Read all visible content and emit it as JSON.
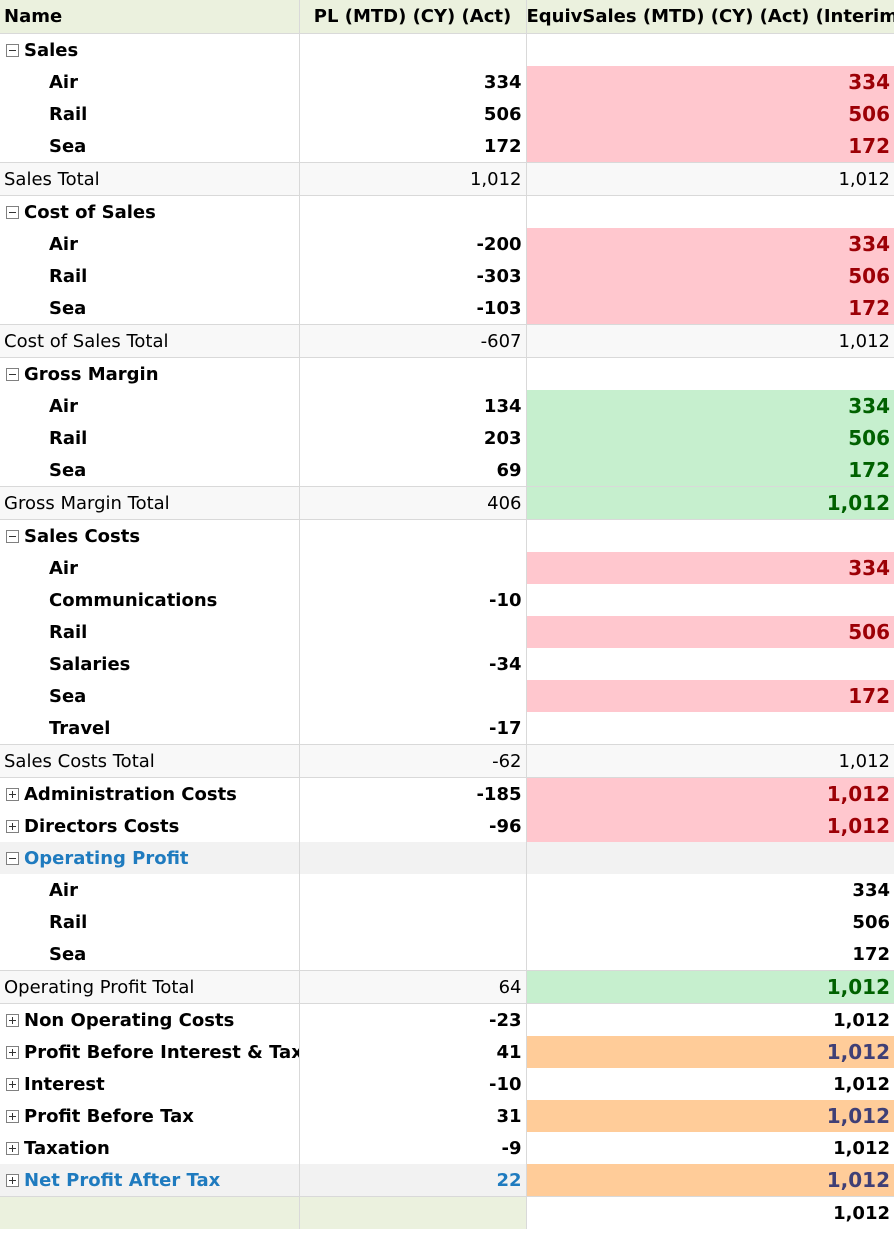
{
  "headers": {
    "name": "Name",
    "pl": "PL (MTD) (CY) (Act)",
    "equiv": "EquivSales (MTD) (CY) (Act) (Interim)"
  },
  "rows": [
    {
      "kind": "group",
      "toggle": "minus",
      "name": "Sales",
      "pl": "",
      "equiv": "",
      "fmt": ""
    },
    {
      "kind": "leaf",
      "name": "Air",
      "pl": "334",
      "equiv": "334",
      "fmt": "bad"
    },
    {
      "kind": "leaf",
      "name": "Rail",
      "pl": "506",
      "equiv": "506",
      "fmt": "bad"
    },
    {
      "kind": "leaf",
      "name": "Sea",
      "pl": "172",
      "equiv": "172",
      "fmt": "bad"
    },
    {
      "kind": "total",
      "name": "Sales Total",
      "pl": "1,012",
      "equiv": "1,012",
      "fmt": ""
    },
    {
      "kind": "group",
      "toggle": "minus",
      "name": "Cost of Sales",
      "pl": "",
      "equiv": "",
      "fmt": ""
    },
    {
      "kind": "leaf",
      "name": "Air",
      "pl": "-200",
      "equiv": "334",
      "fmt": "bad"
    },
    {
      "kind": "leaf",
      "name": "Rail",
      "pl": "-303",
      "equiv": "506",
      "fmt": "bad"
    },
    {
      "kind": "leaf",
      "name": "Sea",
      "pl": "-103",
      "equiv": "172",
      "fmt": "bad"
    },
    {
      "kind": "total",
      "name": "Cost of Sales Total",
      "pl": "-607",
      "equiv": "1,012",
      "fmt": ""
    },
    {
      "kind": "group",
      "toggle": "minus",
      "name": "Gross Margin",
      "pl": "",
      "equiv": "",
      "fmt": ""
    },
    {
      "kind": "leaf",
      "name": "Air",
      "pl": "134",
      "equiv": "334",
      "fmt": "good"
    },
    {
      "kind": "leaf",
      "name": "Rail",
      "pl": "203",
      "equiv": "506",
      "fmt": "good"
    },
    {
      "kind": "leaf",
      "name": "Sea",
      "pl": "69",
      "equiv": "172",
      "fmt": "good"
    },
    {
      "kind": "total",
      "name": "Gross Margin Total",
      "pl": "406",
      "equiv": "1,012",
      "fmt": "good"
    },
    {
      "kind": "group",
      "toggle": "minus",
      "name": "Sales Costs",
      "pl": "",
      "equiv": "",
      "fmt": ""
    },
    {
      "kind": "leaf",
      "name": "Air",
      "pl": "",
      "equiv": "334",
      "fmt": "bad"
    },
    {
      "kind": "leaf",
      "name": "Communications",
      "pl": "-10",
      "equiv": "",
      "fmt": ""
    },
    {
      "kind": "leaf",
      "name": "Rail",
      "pl": "",
      "equiv": "506",
      "fmt": "bad"
    },
    {
      "kind": "leaf",
      "name": "Salaries",
      "pl": "-34",
      "equiv": "",
      "fmt": ""
    },
    {
      "kind": "leaf",
      "name": "Sea",
      "pl": "",
      "equiv": "172",
      "fmt": "bad"
    },
    {
      "kind": "leaf",
      "name": "Travel",
      "pl": "-17",
      "equiv": "",
      "fmt": ""
    },
    {
      "kind": "total",
      "name": "Sales Costs Total",
      "pl": "-62",
      "equiv": "1,012",
      "fmt": ""
    },
    {
      "kind": "collapsed",
      "toggle": "plus",
      "name": "Administration Costs",
      "pl": "-185",
      "equiv": "1,012",
      "fmt": "bad"
    },
    {
      "kind": "collapsed",
      "toggle": "plus",
      "name": "Directors Costs",
      "pl": "-96",
      "equiv": "1,012",
      "fmt": "bad"
    },
    {
      "kind": "group",
      "toggle": "minus",
      "name": "Operating Profit",
      "pl": "",
      "equiv": "",
      "fmt": "",
      "highlight": true
    },
    {
      "kind": "leaf",
      "name": "Air",
      "pl": "",
      "equiv": "334",
      "fmt": ""
    },
    {
      "kind": "leaf",
      "name": "Rail",
      "pl": "",
      "equiv": "506",
      "fmt": ""
    },
    {
      "kind": "leaf",
      "name": "Sea",
      "pl": "",
      "equiv": "172",
      "fmt": ""
    },
    {
      "kind": "total",
      "name": "Operating Profit Total",
      "pl": "64",
      "equiv": "1,012",
      "fmt": "good"
    },
    {
      "kind": "collapsed",
      "toggle": "plus",
      "name": "Non Operating Costs",
      "pl": "-23",
      "equiv": "1,012",
      "fmt": ""
    },
    {
      "kind": "collapsed",
      "toggle": "plus",
      "name": "Profit Before Interest & Tax",
      "pl": "41",
      "equiv": "1,012",
      "fmt": "warn"
    },
    {
      "kind": "collapsed",
      "toggle": "plus",
      "name": "Interest",
      "pl": "-10",
      "equiv": "1,012",
      "fmt": ""
    },
    {
      "kind": "collapsed",
      "toggle": "plus",
      "name": "Profit Before Tax",
      "pl": "31",
      "equiv": "1,012",
      "fmt": "warn"
    },
    {
      "kind": "collapsed",
      "toggle": "plus",
      "name": "Taxation",
      "pl": "-9",
      "equiv": "1,012",
      "fmt": ""
    },
    {
      "kind": "collapsed",
      "toggle": "plus",
      "name": "Net Profit After Tax",
      "pl": "22",
      "equiv": "1,012",
      "fmt": "warn",
      "highlight": true
    },
    {
      "kind": "grandtotal",
      "name": "",
      "pl": "",
      "equiv": "1,012",
      "fmt": ""
    }
  ],
  "colors": {
    "header_bg": "#ebf1de",
    "bad_bg": "#ffc7ce",
    "bad_fg": "#9c0006",
    "good_bg": "#c6efce",
    "good_fg": "#006100",
    "warn_bg": "#ffcc99",
    "warn_fg": "#3f3f76",
    "highlight_fg": "#1f7bbf"
  }
}
